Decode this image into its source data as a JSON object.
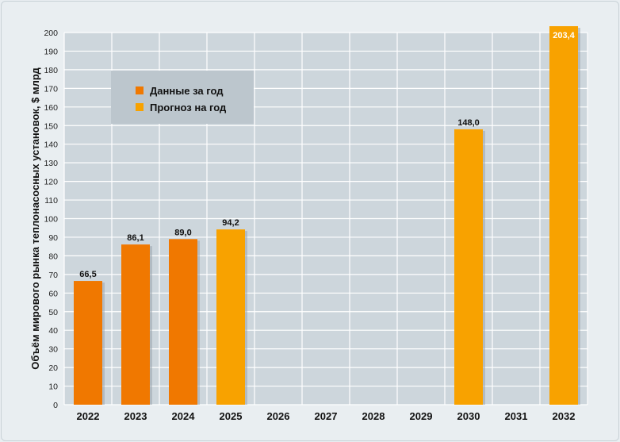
{
  "chart_data": {
    "type": "bar",
    "ylabel": "Объём мирового рынка теплонасосных установок, $ млрд",
    "xlabel": "",
    "ylim": [
      0,
      200
    ],
    "ytick_step": 10,
    "grid": true,
    "legend_position": "top-left",
    "categories": [
      "2022",
      "2023",
      "2024",
      "2025",
      "2026",
      "2027",
      "2028",
      "2029",
      "2030",
      "2031",
      "2032"
    ],
    "bars": [
      {
        "category": "2022",
        "value": 66.5,
        "label": "66,5",
        "series": "Данные за год"
      },
      {
        "category": "2023",
        "value": 86.1,
        "label": "86,1",
        "series": "Данные за год"
      },
      {
        "category": "2024",
        "value": 89.0,
        "label": "89,0",
        "series": "Данные за год"
      },
      {
        "category": "2025",
        "value": 94.2,
        "label": "94,2",
        "series": "Прогноз на год"
      },
      {
        "category": "2030",
        "value": 148.0,
        "label": "148,0",
        "series": "Прогноз на год"
      },
      {
        "category": "2032",
        "value": 203.4,
        "label": "203,4",
        "series": "Прогноз на год"
      }
    ],
    "series": [
      {
        "name": "Данные за год",
        "color": "#f07800"
      },
      {
        "name": "Прогноз на год",
        "color": "#f8a200"
      }
    ],
    "colors": {
      "plot_background": "#cdd6dc",
      "grid": "#ffffff",
      "legend_background": "#bcc6cd"
    }
  }
}
